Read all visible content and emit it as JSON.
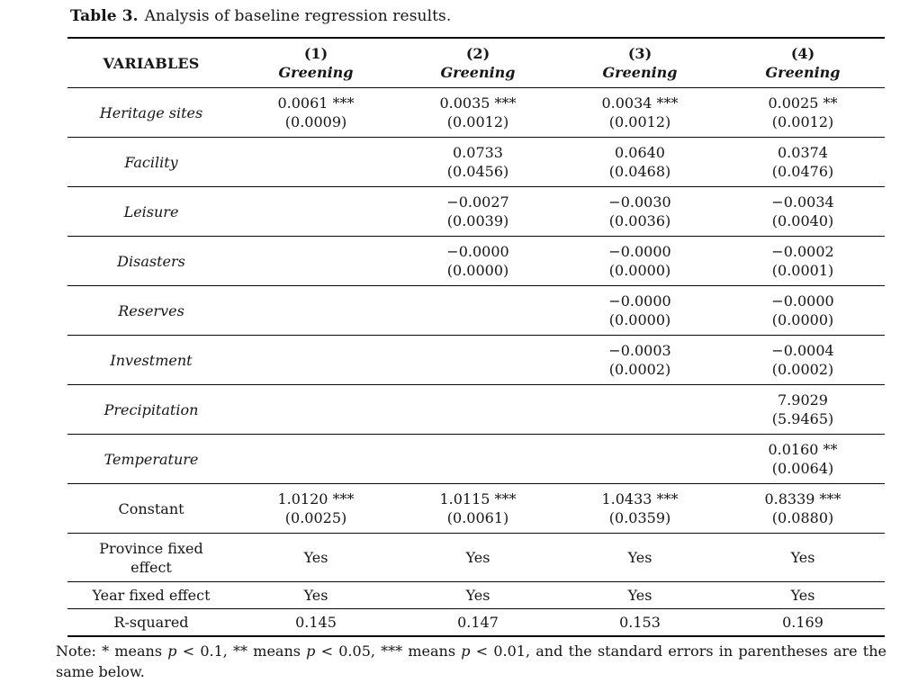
{
  "caption": {
    "label": "Table 3.",
    "text": "Analysis of baseline regression results."
  },
  "table": {
    "header": {
      "variables_label": "VARIABLES",
      "columns": [
        {
          "number": "(1)",
          "depvar": "Greening"
        },
        {
          "number": "(2)",
          "depvar": "Greening"
        },
        {
          "number": "(3)",
          "depvar": "Greening"
        },
        {
          "number": "(4)",
          "depvar": "Greening"
        }
      ]
    },
    "coefficient_rows": [
      {
        "label": "Heritage sites",
        "italic": true,
        "cells": [
          [
            "0.0061 ***",
            "(0.0009)"
          ],
          [
            "0.0035 ***",
            "(0.0012)"
          ],
          [
            "0.0034 ***",
            "(0.0012)"
          ],
          [
            "0.0025 **",
            "(0.0012)"
          ]
        ]
      },
      {
        "label": "Facility",
        "italic": true,
        "cells": [
          [
            "",
            ""
          ],
          [
            "0.0733",
            "(0.0456)"
          ],
          [
            "0.0640",
            "(0.0468)"
          ],
          [
            "0.0374",
            "(0.0476)"
          ]
        ]
      },
      {
        "label": "Leisure",
        "italic": true,
        "cells": [
          [
            "",
            ""
          ],
          [
            "−0.0027",
            "(0.0039)"
          ],
          [
            "−0.0030",
            "(0.0036)"
          ],
          [
            "−0.0034",
            "(0.0040)"
          ]
        ]
      },
      {
        "label": "Disasters",
        "italic": true,
        "cells": [
          [
            "",
            ""
          ],
          [
            "−0.0000",
            "(0.0000)"
          ],
          [
            "−0.0000",
            "(0.0000)"
          ],
          [
            "−0.0002",
            "(0.0001)"
          ]
        ]
      },
      {
        "label": "Reserves",
        "italic": true,
        "cells": [
          [
            "",
            ""
          ],
          [
            "",
            ""
          ],
          [
            "−0.0000",
            "(0.0000)"
          ],
          [
            "−0.0000",
            "(0.0000)"
          ]
        ]
      },
      {
        "label": "Investment",
        "italic": true,
        "cells": [
          [
            "",
            ""
          ],
          [
            "",
            ""
          ],
          [
            "−0.0003",
            "(0.0002)"
          ],
          [
            "−0.0004",
            "(0.0002)"
          ]
        ]
      },
      {
        "label": "Precipitation",
        "italic": true,
        "cells": [
          [
            "",
            ""
          ],
          [
            "",
            ""
          ],
          [
            "",
            ""
          ],
          [
            "7.9029",
            "(5.9465)"
          ]
        ]
      },
      {
        "label": "Temperature",
        "italic": true,
        "cells": [
          [
            "",
            ""
          ],
          [
            "",
            ""
          ],
          [
            "",
            ""
          ],
          [
            "0.0160 **",
            "(0.0064)"
          ]
        ]
      },
      {
        "label": "Constant",
        "italic": false,
        "cells": [
          [
            "1.0120 ***",
            "(0.0025)"
          ],
          [
            "1.0115 ***",
            "(0.0061)"
          ],
          [
            "1.0433 ***",
            "(0.0359)"
          ],
          [
            "0.8339 ***",
            "(0.0880)"
          ]
        ]
      }
    ],
    "summary_rows": [
      {
        "label": "Province fixed effect",
        "values": [
          "Yes",
          "Yes",
          "Yes",
          "Yes"
        ]
      },
      {
        "label": "Year fixed effect",
        "values": [
          "Yes",
          "Yes",
          "Yes",
          "Yes"
        ]
      },
      {
        "label": "R-squared",
        "values": [
          "0.145",
          "0.147",
          "0.153",
          "0.169"
        ]
      }
    ]
  },
  "note": {
    "segments": [
      {
        "text": "Note: * means ",
        "italic": false
      },
      {
        "text": "p",
        "italic": true
      },
      {
        "text": " < 0.1, ** means ",
        "italic": false
      },
      {
        "text": "p",
        "italic": true
      },
      {
        "text": " < 0.05, *** means ",
        "italic": false
      },
      {
        "text": "p",
        "italic": true
      },
      {
        "text": " < 0.01, and the standard errors in parentheses are the same below.",
        "italic": false
      }
    ]
  }
}
